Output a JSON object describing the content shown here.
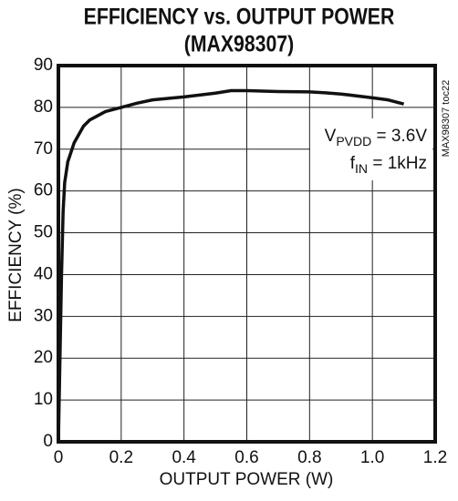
{
  "chart_data": {
    "type": "line",
    "title": "EFFICIENCY vs. OUTPUT POWER",
    "subtitle": "(MAX98307)",
    "side_label": "MAX98307 toc22",
    "x_label": "OUTPUT POWER (W)",
    "y_label": "EFFICIENCY (%)",
    "annotations": [
      {
        "main": "V",
        "sub": "PVDD",
        "rest": " = 3.6V"
      },
      {
        "main": "f",
        "sub": "IN",
        "rest": " = 1kHz"
      }
    ],
    "x": [
      0,
      0.005,
      0.01,
      0.015,
      0.02,
      0.03,
      0.05,
      0.08,
      0.1,
      0.15,
      0.2,
      0.25,
      0.3,
      0.4,
      0.5,
      0.55,
      0.6,
      0.7,
      0.8,
      0.85,
      0.9,
      1.0,
      1.05,
      1.1
    ],
    "series": [
      {
        "name": "Efficiency",
        "color": "#111111",
        "values": [
          0,
          20,
          40,
          55,
          62,
          67,
          71.5,
          75.5,
          77,
          79,
          80,
          81,
          81.8,
          82.5,
          83.4,
          84,
          84,
          83.8,
          83.7,
          83.5,
          83.2,
          82.3,
          81.8,
          80.8
        ]
      }
    ],
    "xlim": [
      0,
      1.2
    ],
    "xticks": [
      0,
      0.2,
      0.4,
      0.6,
      0.8,
      {
        "value": 1,
        "label": "1.0"
      },
      1.2
    ],
    "ylim": [
      0,
      90
    ],
    "yticks": [
      0,
      10,
      20,
      30,
      40,
      50,
      60,
      70,
      80,
      90
    ],
    "grid": true
  }
}
